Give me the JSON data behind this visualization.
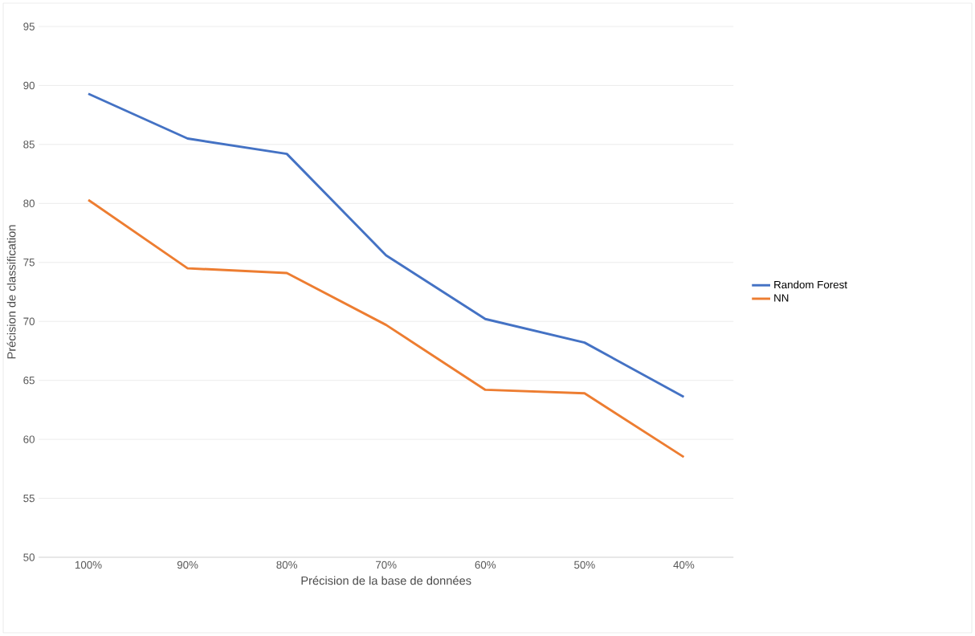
{
  "chart_data": {
    "type": "line",
    "xlabel": "Précision de la base de données",
    "ylabel": "Précision de classification",
    "categories": [
      "100%",
      "90%",
      "80%",
      "70%",
      "60%",
      "50%",
      "40%"
    ],
    "series": [
      {
        "name": "Random Forest",
        "color": "#4472c4",
        "values": [
          89.3,
          85.5,
          84.2,
          75.6,
          70.2,
          68.2,
          63.6
        ]
      },
      {
        "name": "NN",
        "color": "#ed7d31",
        "values": [
          80.3,
          74.5,
          74.1,
          69.7,
          64.2,
          63.9,
          58.5
        ]
      }
    ],
    "ylim": [
      50,
      95
    ],
    "yticks": [
      50,
      55,
      60,
      65,
      70,
      75,
      80,
      85,
      90,
      95
    ],
    "grid": "y",
    "legend": "right",
    "marker": "none",
    "line_style": "solid"
  }
}
